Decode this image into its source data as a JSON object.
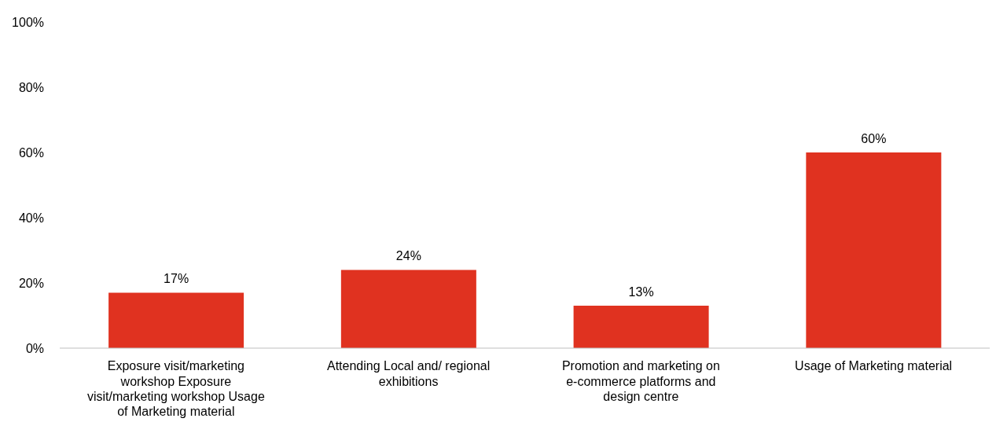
{
  "chart_data": {
    "type": "bar",
    "categories": [
      "Exposure visit/marketing workshop Exposure visit/marketing workshop Usage of Marketing material",
      "Attending Local and/ regional exhibitions",
      "Promotion and marketing on e-commerce platforms and design centre",
      "Usage of Marketing material"
    ],
    "values": [
      17,
      24,
      13,
      60
    ],
    "value_labels": [
      "17%",
      "24%",
      "13%",
      "60%"
    ],
    "color": "#e03220",
    "ylim": [
      0,
      100
    ],
    "yticks": [
      {
        "value": 0,
        "label": "0%"
      },
      {
        "value": 20,
        "label": "20%"
      },
      {
        "value": 40,
        "label": "40%"
      },
      {
        "value": 60,
        "label": "60%"
      },
      {
        "value": 80,
        "label": "80%"
      },
      {
        "value": 100,
        "label": "100%"
      }
    ],
    "grid": false,
    "legend": false
  }
}
